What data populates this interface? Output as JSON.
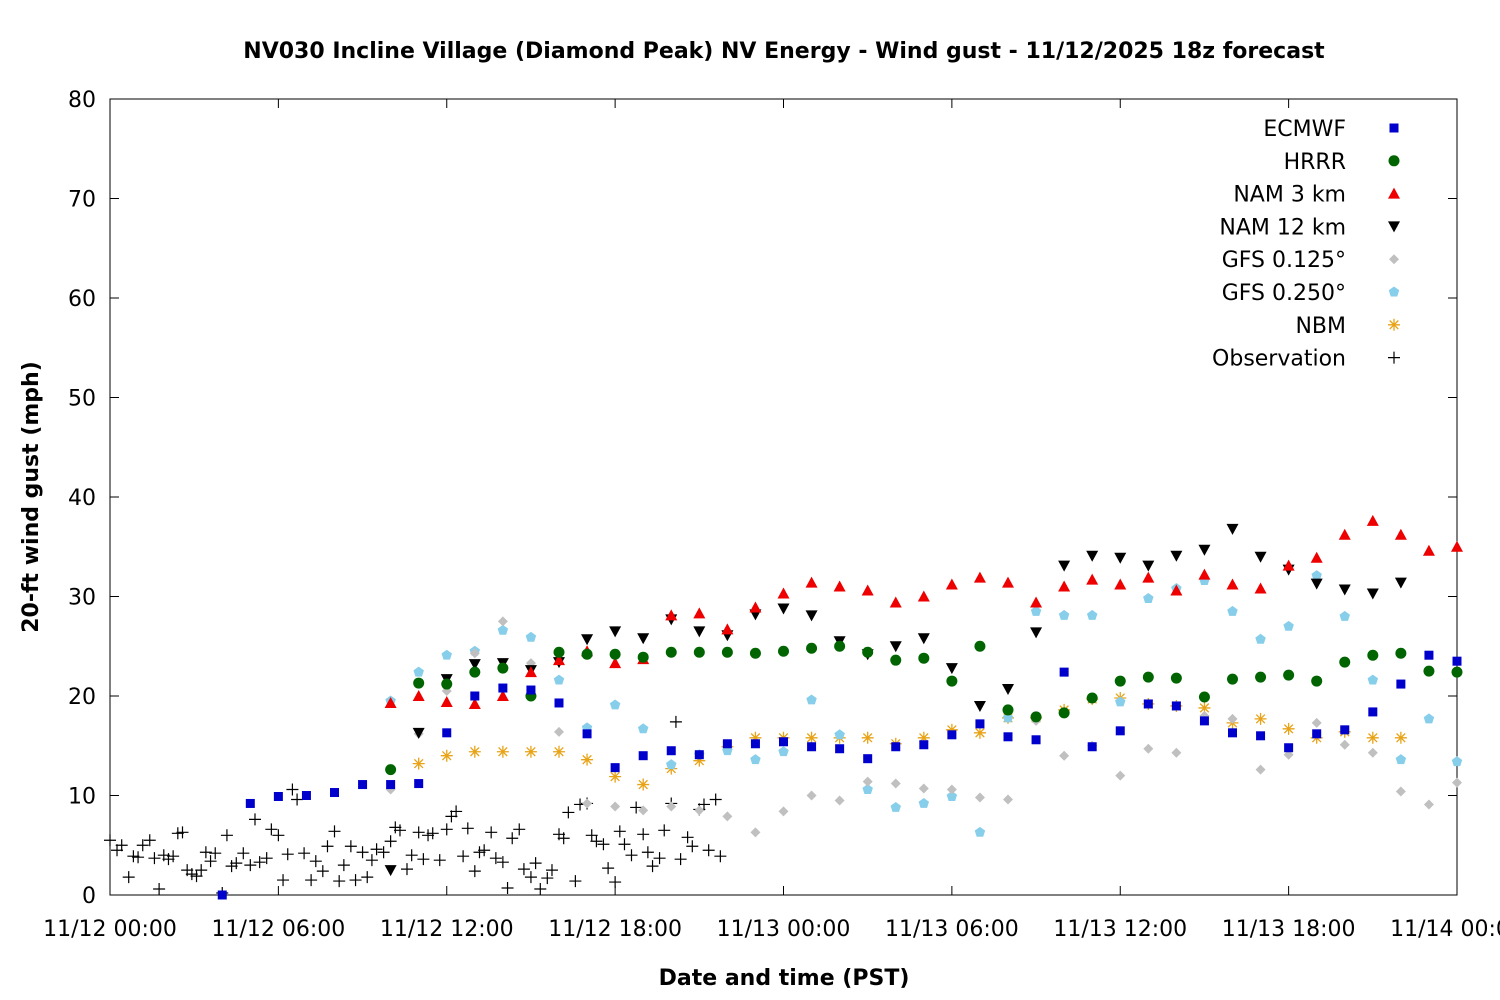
{
  "chart_data": {
    "type": "scatter",
    "title": "NV030 Incline Village (Diamond Peak) NV Energy - Wind gust - 11/12/2025 18z forecast",
    "xlabel": "Date and time (PST)",
    "ylabel": "20-ft wind gust (mph)",
    "xlim": [
      "11/12 00:00",
      "11/14 00:00"
    ],
    "ylim": [
      0,
      80
    ],
    "x_ticks": [
      "11/12 00:00",
      "11/12 06:00",
      "11/12 12:00",
      "11/12 18:00",
      "11/13 00:00",
      "11/13 06:00",
      "11/13 12:00",
      "11/13 18:00",
      "11/14 00:00"
    ],
    "y_ticks": [
      "0",
      "10",
      "20",
      "30",
      "40",
      "50",
      "60",
      "70",
      "80"
    ],
    "grid": false,
    "legend_position": "top-right",
    "series": [
      {
        "name": "ECMWF",
        "marker": "square",
        "color": "#0000cc",
        "x": [
          "11/12 04:00",
          "11/12 05:00",
          "11/12 06:00",
          "11/12 07:00",
          "11/12 08:00",
          "11/12 09:00",
          "11/12 10:00",
          "11/12 11:00",
          "11/12 12:00",
          "11/12 13:00",
          "11/12 14:00",
          "11/12 15:00",
          "11/12 16:00",
          "11/12 17:00",
          "11/12 18:00",
          "11/12 19:00",
          "11/12 20:00",
          "11/12 21:00",
          "11/12 22:00",
          "11/12 23:00",
          "11/13 00:00",
          "11/13 01:00",
          "11/13 02:00",
          "11/13 03:00",
          "11/13 04:00",
          "11/13 05:00",
          "11/13 06:00",
          "11/13 07:00",
          "11/13 08:00",
          "11/13 09:00",
          "11/13 10:00",
          "11/13 11:00",
          "11/13 12:00",
          "11/13 13:00",
          "11/13 14:00",
          "11/13 15:00",
          "11/13 16:00",
          "11/13 17:00",
          "11/13 18:00",
          "11/13 19:00",
          "11/13 20:00",
          "11/13 21:00",
          "11/13 22:00",
          "11/13 23:00",
          "11/14 00:00"
        ],
        "y": [
          0,
          9.2,
          9.9,
          10,
          10.3,
          11.1,
          11.1,
          11.2,
          16.3,
          20,
          20.8,
          20.6,
          19.3,
          16.2,
          12.8,
          14,
          14.5,
          14.1,
          15.2,
          15.2,
          15.4,
          14.9,
          14.7,
          13.7,
          14.9,
          15.1,
          16.1,
          17.2,
          15.9,
          15.6,
          22.4,
          14.9,
          16.5,
          19.2,
          19,
          17.5,
          16.3,
          16,
          14.8,
          16.2,
          16.6,
          18.4,
          21.2,
          24.1,
          23.5
        ]
      },
      {
        "name": "HRRR",
        "marker": "circle",
        "color": "#006400",
        "x": [
          "11/12 10:00",
          "11/12 11:00",
          "11/12 12:00",
          "11/12 13:00",
          "11/12 14:00",
          "11/12 15:00",
          "11/12 16:00",
          "11/12 17:00",
          "11/12 18:00",
          "11/12 19:00",
          "11/12 20:00",
          "11/12 21:00",
          "11/12 22:00",
          "11/12 23:00",
          "11/13 00:00",
          "11/13 01:00",
          "11/13 02:00",
          "11/13 03:00",
          "11/13 04:00",
          "11/13 05:00",
          "11/13 06:00",
          "11/13 07:00",
          "11/13 08:00",
          "11/13 09:00",
          "11/13 10:00",
          "11/13 11:00",
          "11/13 12:00",
          "11/13 13:00",
          "11/13 14:00",
          "11/13 15:00",
          "11/13 16:00",
          "11/13 17:00",
          "11/13 18:00",
          "11/13 19:00",
          "11/13 20:00",
          "11/13 21:00",
          "11/13 22:00",
          "11/13 23:00",
          "11/14 00:00"
        ],
        "y": [
          12.6,
          21.3,
          21.2,
          22.4,
          22.8,
          20,
          24.4,
          24.2,
          24.2,
          23.9,
          24.4,
          24.4,
          24.4,
          24.3,
          24.5,
          24.8,
          25,
          24.4,
          23.6,
          23.8,
          21.5,
          25,
          18.6,
          17.9,
          18.3,
          19.8,
          21.5,
          21.9,
          21.8,
          19.9,
          21.7,
          21.9,
          22.1,
          21.5,
          23.4,
          24.1,
          24.3,
          22.5,
          22.4
        ]
      },
      {
        "name": "NAM 3 km",
        "marker": "triangle-up",
        "color": "#ee0000",
        "x": [
          "11/12 10:00",
          "11/12 11:00",
          "11/12 12:00",
          "11/12 13:00",
          "11/12 14:00",
          "11/12 15:00",
          "11/12 16:00",
          "11/12 17:00",
          "11/12 18:00",
          "11/12 19:00",
          "11/12 20:00",
          "11/12 21:00",
          "11/12 22:00",
          "11/12 23:00",
          "11/13 00:00",
          "11/13 01:00",
          "11/13 02:00",
          "11/13 03:00",
          "11/13 04:00",
          "11/13 05:00",
          "11/13 06:00",
          "11/13 07:00",
          "11/13 08:00",
          "11/13 09:00",
          "11/13 10:00",
          "11/13 11:00",
          "11/13 12:00",
          "11/13 13:00",
          "11/13 14:00",
          "11/13 15:00",
          "11/13 16:00",
          "11/13 17:00",
          "11/13 18:00",
          "11/13 19:00",
          "11/13 20:00",
          "11/13 21:00",
          "11/13 22:00",
          "11/13 23:00",
          "11/14 00:00"
        ],
        "y": [
          19.3,
          20,
          19.4,
          19.2,
          20,
          22.4,
          23.6,
          24.5,
          23.3,
          23.7,
          28.1,
          28.3,
          26.7,
          28.9,
          30.3,
          31.4,
          31,
          30.6,
          29.4,
          30,
          31.2,
          31.9,
          31.4,
          29.4,
          31,
          31.7,
          31.2,
          31.9,
          30.6,
          32.2,
          31.2,
          30.8,
          33.1,
          33.9,
          36.2,
          37.6,
          36.2,
          34.6,
          35
        ]
      },
      {
        "name": "NAM 12 km",
        "marker": "triangle-down",
        "color": "#000000",
        "x": [
          "11/12 10:00",
          "11/12 11:00",
          "11/12 12:00",
          "11/12 13:00",
          "11/12 14:00",
          "11/12 15:00",
          "11/12 16:00",
          "11/12 17:00",
          "11/12 18:00",
          "11/12 19:00",
          "11/12 20:00",
          "11/12 21:00",
          "11/12 22:00",
          "11/12 23:00",
          "11/13 00:00",
          "11/13 01:00",
          "11/13 02:00",
          "11/13 03:00",
          "11/13 04:00",
          "11/13 05:00",
          "11/13 06:00",
          "11/13 07:00",
          "11/13 08:00",
          "11/13 09:00",
          "11/13 10:00",
          "11/13 11:00",
          "11/13 12:00",
          "11/13 13:00",
          "11/13 14:00",
          "11/13 15:00",
          "11/13 16:00",
          "11/13 17:00",
          "11/13 18:00",
          "11/13 19:00",
          "11/13 20:00",
          "11/13 21:00",
          "11/13 22:00"
        ],
        "y": [
          2.5,
          16.3,
          21.7,
          23.2,
          23.3,
          22.6,
          23.4,
          25.7,
          26.5,
          25.8,
          27.7,
          26.5,
          26.1,
          28.2,
          28.8,
          28.1,
          25.5,
          24.2,
          25,
          25.8,
          22.8,
          19,
          20.7,
          26.4,
          33.1,
          34.1,
          33.9,
          33.1,
          34.1,
          34.7,
          36.8,
          34,
          32.7,
          31.3,
          30.7,
          30.3,
          31.4
        ]
      },
      {
        "name": "GFS 0.125°",
        "marker": "diamond",
        "color": "#c0c0c0",
        "x": [
          "11/12 10:00",
          "11/12 11:00",
          "11/12 12:00",
          "11/12 13:00",
          "11/12 14:00",
          "11/12 15:00",
          "11/12 16:00",
          "11/12 17:00",
          "11/12 18:00",
          "11/12 19:00",
          "11/12 20:00",
          "11/12 21:00",
          "11/12 22:00",
          "11/12 23:00",
          "11/13 00:00",
          "11/13 01:00",
          "11/13 02:00",
          "11/13 03:00",
          "11/13 04:00",
          "11/13 05:00",
          "11/13 06:00",
          "11/13 07:00",
          "11/13 08:00",
          "11/13 09:00",
          "11/13 10:00",
          "11/13 11:00",
          "11/13 12:00",
          "11/13 13:00",
          "11/13 14:00",
          "11/13 15:00",
          "11/13 16:00",
          "11/13 17:00",
          "11/13 18:00",
          "11/13 19:00",
          "11/13 20:00",
          "11/13 21:00",
          "11/13 22:00",
          "11/13 23:00",
          "11/14 00:00"
        ],
        "y": [
          10.6,
          16.2,
          20.5,
          24.3,
          27.5,
          23.3,
          16.4,
          9.2,
          8.9,
          8.5,
          8.9,
          8.5,
          7.9,
          6.3,
          8.4,
          10,
          9.5,
          11.4,
          11.2,
          10.7,
          10.6,
          9.8,
          9.6,
          17.5,
          14,
          15,
          12,
          14.7,
          14.3,
          18,
          17.7,
          12.6,
          14.1,
          17.3,
          15.1,
          14.3,
          10.4,
          9.1,
          11.3
        ]
      },
      {
        "name": "GFS 0.250°",
        "marker": "pentagon",
        "color": "#87ceeb",
        "x": [
          "11/12 10:00",
          "11/12 11:00",
          "11/12 12:00",
          "11/12 13:00",
          "11/12 14:00",
          "11/12 15:00",
          "11/12 16:00",
          "11/12 17:00",
          "11/12 18:00",
          "11/12 19:00",
          "11/12 20:00",
          "11/12 21:00",
          "11/12 22:00",
          "11/12 23:00",
          "11/13 00:00",
          "11/13 01:00",
          "11/13 02:00",
          "11/13 03:00",
          "11/13 04:00",
          "11/13 05:00",
          "11/13 06:00",
          "11/13 07:00",
          "11/13 08:00",
          "11/13 09:00",
          "11/13 10:00",
          "11/13 11:00",
          "11/13 12:00",
          "11/13 13:00",
          "11/13 14:00",
          "11/13 15:00",
          "11/13 16:00",
          "11/13 17:00",
          "11/13 18:00",
          "11/13 19:00",
          "11/13 20:00",
          "11/13 21:00",
          "11/13 22:00",
          "11/13 23:00",
          "11/14 00:00"
        ],
        "y": [
          19.5,
          22.4,
          24.1,
          24.5,
          26.6,
          25.9,
          21.6,
          16.8,
          19.1,
          16.7,
          13.1,
          14.1,
          14.5,
          13.6,
          14.4,
          19.6,
          16.1,
          10.6,
          8.8,
          9.2,
          9.9,
          6.3,
          17.8,
          28.5,
          28.1,
          28.1,
          19.4,
          29.8,
          30.8,
          31.6,
          28.5,
          25.7,
          27,
          32.1,
          28,
          21.6,
          13.6,
          17.7,
          13.4
        ]
      },
      {
        "name": "NBM",
        "marker": "asterisk",
        "color": "#e8a317",
        "x": [
          "11/12 11:00",
          "11/12 12:00",
          "11/12 13:00",
          "11/12 14:00",
          "11/12 15:00",
          "11/12 16:00",
          "11/12 17:00",
          "11/12 18:00",
          "11/12 19:00",
          "11/12 20:00",
          "11/12 21:00",
          "11/12 22:00",
          "11/12 23:00",
          "11/13 00:00",
          "11/13 01:00",
          "11/13 02:00",
          "11/13 03:00",
          "11/13 04:00",
          "11/13 05:00",
          "11/13 06:00",
          "11/13 07:00",
          "11/13 08:00",
          "11/13 09:00",
          "11/13 10:00",
          "11/13 11:00",
          "11/13 12:00",
          "11/13 13:00",
          "11/13 14:00",
          "11/13 15:00",
          "11/13 16:00",
          "11/13 17:00",
          "11/13 18:00",
          "11/13 19:00",
          "11/13 20:00",
          "11/13 21:00",
          "11/13 22:00"
        ],
        "y": [
          13.2,
          14,
          14.4,
          14.4,
          14.4,
          14.4,
          13.6,
          11.9,
          11.1,
          12.7,
          13.5,
          14.9,
          15.8,
          15.8,
          15.8,
          15.8,
          15.8,
          15.2,
          15.8,
          16.6,
          16.3,
          17.8,
          17.8,
          18.6,
          19.7,
          19.8,
          19.2,
          19,
          18.8,
          17.3,
          17.7,
          16.7,
          15.8,
          16.4,
          15.8,
          15.8
        ]
      },
      {
        "name": "Observation",
        "marker": "plus",
        "color": "#000000",
        "x": [
          "11/12 00:00",
          "11/12 00:15",
          "11/12 00:25",
          "11/12 00:40",
          "11/12 00:50",
          "11/12 01:00",
          "11/12 01:10",
          "11/12 01:25",
          "11/12 01:35",
          "11/12 01:45",
          "11/12 01:55",
          "11/12 02:05",
          "11/12 02:15",
          "11/12 02:25",
          "11/12 02:35",
          "11/12 02:45",
          "11/12 02:55",
          "11/12 03:05",
          "11/12 03:15",
          "11/12 03:25",
          "11/12 03:35",
          "11/12 03:45",
          "11/12 04:00",
          "11/12 04:10",
          "11/12 04:20",
          "11/12 04:30",
          "11/12 04:45",
          "11/12 05:00",
          "11/12 05:10",
          "11/12 05:20",
          "11/12 05:35",
          "11/12 05:45",
          "11/12 06:00",
          "11/12 06:10",
          "11/12 06:20",
          "11/12 06:30",
          "11/12 06:40",
          "11/12 06:55",
          "11/12 07:10",
          "11/12 07:20",
          "11/12 07:35",
          "11/12 07:45",
          "11/12 08:00",
          "11/12 08:10",
          "11/12 08:20",
          "11/12 08:35",
          "11/12 08:45",
          "11/12 09:00",
          "11/12 09:10",
          "11/12 09:20",
          "11/12 09:30",
          "11/12 09:45",
          "11/12 10:00",
          "11/12 10:10",
          "11/12 10:20",
          "11/12 10:35",
          "11/12 10:45",
          "11/12 11:00",
          "11/12 11:10",
          "11/12 11:20",
          "11/12 11:30",
          "11/12 11:45",
          "11/12 12:00",
          "11/12 12:10",
          "11/12 12:20",
          "11/12 12:35",
          "11/12 12:45",
          "11/12 13:00",
          "11/12 13:10",
          "11/12 13:20",
          "11/12 13:35",
          "11/12 13:45",
          "11/12 14:00",
          "11/12 14:10",
          "11/12 14:20",
          "11/12 14:35",
          "11/12 14:45",
          "11/12 15:00",
          "11/12 15:10",
          "11/12 15:20",
          "11/12 15:35",
          "11/12 15:45",
          "11/12 16:00",
          "11/12 16:10",
          "11/12 16:20",
          "11/12 16:35",
          "11/12 16:45",
          "11/12 17:00",
          "11/12 17:10",
          "11/12 17:20",
          "11/12 17:35",
          "11/12 17:45",
          "11/12 18:00",
          "11/12 18:10",
          "11/12 18:20",
          "11/12 18:35",
          "11/12 18:45",
          "11/12 19:00",
          "11/12 19:10",
          "11/12 19:20",
          "11/12 19:35",
          "11/12 19:45",
          "11/12 20:00",
          "11/12 20:10",
          "11/12 20:20",
          "11/12 20:35",
          "11/12 20:45",
          "11/12 21:00",
          "11/12 21:10",
          "11/12 21:20",
          "11/12 21:35",
          "11/12 21:45"
        ],
        "y": [
          5.5,
          4.5,
          5,
          1.8,
          3.9,
          3.8,
          5,
          5.5,
          3.7,
          0.6,
          4,
          3.6,
          3.9,
          6.2,
          6.3,
          2.5,
          2.1,
          1.9,
          2.5,
          4.3,
          3.4,
          4.2,
          0.2,
          6,
          2.9,
          3.2,
          4.2,
          3,
          7.6,
          3.3,
          3.7,
          6.6,
          6,
          1.5,
          4.1,
          10.6,
          9.6,
          4.2,
          1.5,
          3.4,
          2.4,
          4.9,
          6.4,
          1.4,
          3,
          4.9,
          1.5,
          4.3,
          1.8,
          3.5,
          4.6,
          4.3,
          5.4,
          6.8,
          6.5,
          2.6,
          4,
          6.3,
          3.6,
          6,
          6.2,
          3.5,
          6.6,
          7.9,
          8.4,
          3.9,
          6.7,
          2.4,
          4.3,
          4.5,
          6.3,
          3.7,
          3.3,
          0.7,
          5.7,
          6.6,
          2.6,
          1.8,
          3.2,
          0.6,
          1.7,
          2.5,
          6.1,
          5.7,
          8.3,
          1.4,
          9.1,
          9.2,
          6,
          5.4,
          5.1,
          2.7,
          1.3,
          6.4,
          5.1,
          4,
          8.8,
          6.1,
          4.3,
          2.9,
          3.7,
          6.5,
          9.2,
          17.4,
          3.6,
          5.8,
          4.9,
          8.6,
          9.1,
          4.5,
          9.6,
          3.9
        ]
      }
    ]
  }
}
